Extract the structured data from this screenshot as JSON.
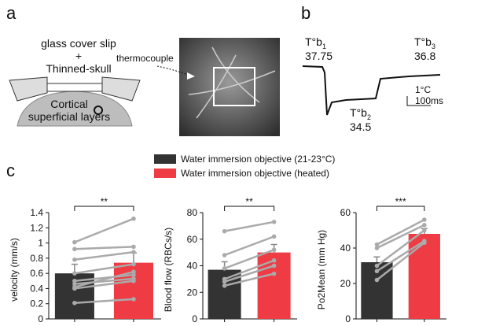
{
  "panel_labels": [
    "a",
    "b",
    "c"
  ],
  "diagram": {
    "cover_slip": "glass cover slip",
    "plus": "+",
    "skull": "Thinned-skull",
    "thermocouple": "thermocouple",
    "cortex_1": "Cortical",
    "cortex_2": "superficial layers"
  },
  "trace": {
    "points": [
      {
        "name": "T°b",
        "sub": "1",
        "value": "37.75"
      },
      {
        "name": "T°b",
        "sub": "2",
        "value": "34.5"
      },
      {
        "name": "T°b",
        "sub": "3",
        "value": "36.8"
      }
    ],
    "scale_y": "1°C",
    "scale_x": "100ms"
  },
  "legend": [
    {
      "name": "Water immersion objective (21-23°C)",
      "color": "#333333"
    },
    {
      "name": "Water immersion objective (heated)",
      "color": "#ee3b44"
    }
  ],
  "chart_data": [
    {
      "type": "bar",
      "ylabel": "velocity (mm/s)",
      "ylim": [
        0,
        1.4
      ],
      "yticks": [
        0,
        0.2,
        0.4,
        0.6,
        0.8,
        1,
        1.2,
        1.4
      ],
      "values": [
        0.6,
        0.74
      ],
      "errors": [
        0.12,
        0.13
      ],
      "pairs": [
        [
          1.01,
          1.32
        ],
        [
          0.92,
          0.95
        ],
        [
          0.78,
          0.88
        ],
        [
          0.6,
          0.72
        ],
        [
          0.5,
          0.58
        ],
        [
          0.46,
          0.53
        ],
        [
          0.42,
          0.62
        ],
        [
          0.4,
          0.5
        ],
        [
          0.21,
          0.26
        ]
      ],
      "significance": "**"
    },
    {
      "type": "bar",
      "ylabel": "Blood flow (RBCs/s)",
      "ylim": [
        0,
        80
      ],
      "yticks": [
        0,
        20,
        40,
        60,
        80
      ],
      "values": [
        37,
        50
      ],
      "errors": [
        6,
        6
      ],
      "pairs": [
        [
          66,
          73
        ],
        [
          48,
          62
        ],
        [
          38,
          52
        ],
        [
          30,
          44
        ],
        [
          28,
          40
        ],
        [
          25,
          34
        ]
      ],
      "significance": "**"
    },
    {
      "type": "bar",
      "ylabel": "Po2Mean (mm Hg)",
      "ylim": [
        0,
        60
      ],
      "yticks": [
        0,
        20,
        40,
        60
      ],
      "values": [
        32,
        48
      ],
      "errors": [
        3,
        3
      ],
      "pairs": [
        [
          42,
          56
        ],
        [
          40,
          53
        ],
        [
          30,
          50
        ],
        [
          27,
          44
        ],
        [
          22,
          43
        ]
      ],
      "significance": "***"
    }
  ]
}
